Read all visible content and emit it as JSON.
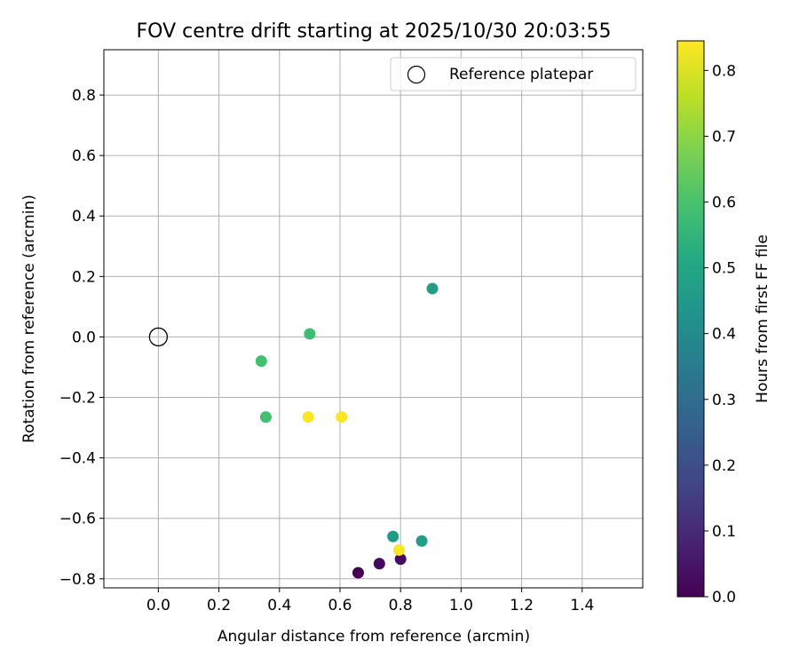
{
  "chart_data": {
    "type": "scatter",
    "title": "FOV centre drift starting at 2025/10/30 20:03:55",
    "xlabel": "Angular distance from reference (arcmin)",
    "ylabel": "Rotation from reference (arcmin)",
    "xlim": [
      -0.18,
      1.6
    ],
    "ylim": [
      -0.83,
      0.95
    ],
    "xticks": [
      "0.0",
      "0.2",
      "0.4",
      "0.6",
      "0.8",
      "1.0",
      "1.2",
      "1.4"
    ],
    "yticks": [
      "−0.8",
      "−0.6",
      "−0.4",
      "−0.2",
      "0.0",
      "0.2",
      "0.4",
      "0.6",
      "0.8"
    ],
    "grid": true,
    "legend": {
      "placement": "upper right",
      "entries": [
        "Reference platepar"
      ]
    },
    "reference_point": {
      "x": 0.0,
      "y": 0.0
    },
    "colorbar": {
      "label": "Hours from first FF file",
      "colormap": "viridis",
      "range": [
        0.0,
        0.845
      ],
      "ticks": [
        "0.0",
        "0.1",
        "0.2",
        "0.3",
        "0.4",
        "0.5",
        "0.6",
        "0.7",
        "0.8"
      ]
    },
    "points": [
      {
        "x": 0.66,
        "y": -0.78,
        "c": 0.0
      },
      {
        "x": 0.73,
        "y": -0.75,
        "c": 0.02
      },
      {
        "x": 0.8,
        "y": -0.735,
        "c": 0.03
      },
      {
        "x": 0.775,
        "y": -0.66,
        "c": 0.46
      },
      {
        "x": 0.87,
        "y": -0.675,
        "c": 0.47
      },
      {
        "x": 0.905,
        "y": 0.16,
        "c": 0.47
      },
      {
        "x": 0.5,
        "y": 0.01,
        "c": 0.58
      },
      {
        "x": 0.34,
        "y": -0.08,
        "c": 0.59
      },
      {
        "x": 0.355,
        "y": -0.265,
        "c": 0.59
      },
      {
        "x": 0.495,
        "y": -0.265,
        "c": 0.84
      },
      {
        "x": 0.605,
        "y": -0.265,
        "c": 0.84
      },
      {
        "x": 0.795,
        "y": -0.705,
        "c": 0.84
      }
    ]
  }
}
